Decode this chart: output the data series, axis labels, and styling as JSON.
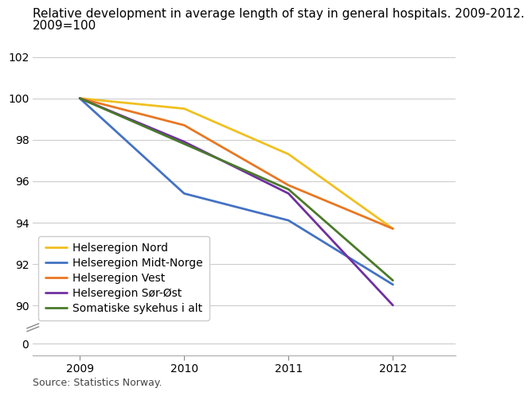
{
  "title_line1": "Relative development in average length of stay in general hospitals. 2009-2012.",
  "title_line2": "2009=100",
  "x": [
    2009,
    2010,
    2011,
    2012
  ],
  "series": [
    {
      "label": "Helseregion Nord",
      "color": "#f0c020",
      "values": [
        100,
        99.5,
        97.3,
        93.7
      ],
      "linewidth": 2.0
    },
    {
      "label": "Helseregion Midt-Norge",
      "color": "#4472c4",
      "values": [
        100,
        95.4,
        94.1,
        91.0
      ],
      "linewidth": 2.0
    },
    {
      "label": "Helseregion Vest",
      "color": "#e87722",
      "values": [
        100,
        98.7,
        95.8,
        93.7
      ],
      "linewidth": 2.0
    },
    {
      "label": "Helseregion Sør-Øst",
      "color": "#7030a0",
      "values": [
        100,
        97.9,
        95.4,
        90.0
      ],
      "linewidth": 2.0
    },
    {
      "label": "Somatiske sykehus i alt",
      "color": "#4a7a2a",
      "values": [
        100,
        97.8,
        95.6,
        91.2
      ],
      "linewidth": 2.0
    }
  ],
  "source_text": "Source: Statistics Norway.",
  "background_color": "#ffffff",
  "grid_color": "#cccccc",
  "title_fontsize": 11,
  "label_fontsize": 10,
  "tick_fontsize": 10,
  "source_fontsize": 9,
  "yticks_top": [
    90,
    92,
    94,
    96,
    98,
    100,
    102
  ],
  "xticks": [
    2009,
    2010,
    2011,
    2012
  ],
  "xlim": [
    2008.55,
    2012.6
  ]
}
